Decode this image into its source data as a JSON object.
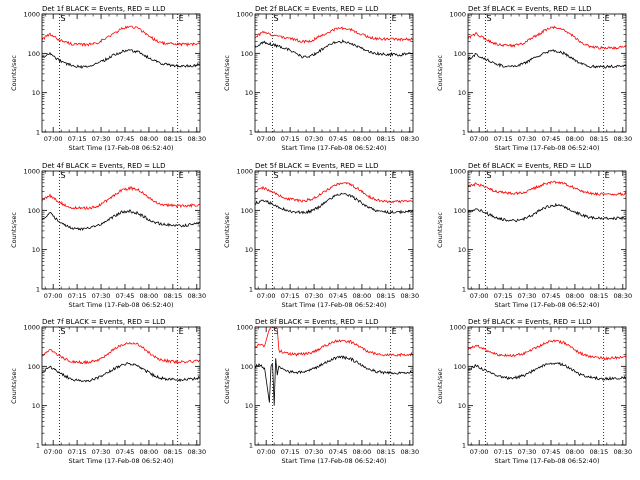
{
  "colors": {
    "events": "#000000",
    "lld": "#ff0000",
    "axes": "#000000",
    "background": "#ffffff"
  },
  "shared": {
    "xlabel": "Start Time (17-Feb-08 06:52:40)",
    "ylabel": "Counts/sec",
    "x_tick_labels": [
      "07:00",
      "07:15",
      "07:30",
      "07:45",
      "08:00",
      "08:15",
      "08:30"
    ],
    "x_tick_minutes": [
      7,
      22,
      37,
      52,
      67,
      82,
      97
    ],
    "x_range_minutes": [
      0,
      99
    ],
    "y_tick_labels": [
      "1",
      "10",
      "100",
      "1000"
    ],
    "y_tick_values": [
      1,
      10,
      100,
      1000
    ],
    "y_range": [
      1,
      1000
    ],
    "y_scale": "log",
    "markers": [
      {
        "label": "S",
        "x_minute": 11
      },
      {
        "label": "E",
        "x_minute": 85
      }
    ]
  },
  "chart_data": [
    {
      "type": "line",
      "title": "Det 1f BLACK = Events, RED = LLD",
      "x": [
        0,
        5,
        10,
        15,
        20,
        25,
        30,
        35,
        40,
        45,
        50,
        55,
        60,
        65,
        70,
        75,
        80,
        85,
        90,
        95,
        99
      ],
      "series": [
        {
          "values": [
            230,
            300,
            230,
            190,
            170,
            165,
            170,
            190,
            240,
            320,
            420,
            480,
            440,
            320,
            230,
            185,
            175,
            170,
            168,
            170,
            175
          ]
        },
        {
          "values": [
            80,
            100,
            70,
            55,
            48,
            45,
            48,
            55,
            70,
            90,
            110,
            120,
            110,
            85,
            65,
            55,
            50,
            48,
            47,
            48,
            52
          ]
        }
      ]
    },
    {
      "type": "line",
      "title": "Det 2f BLACK = Events, RED = LLD",
      "x": [
        0,
        5,
        10,
        15,
        20,
        25,
        30,
        35,
        40,
        45,
        50,
        55,
        60,
        65,
        70,
        75,
        80,
        85,
        90,
        95,
        99
      ],
      "series": [
        {
          "values": [
            260,
            340,
            300,
            270,
            250,
            220,
            200,
            210,
            260,
            330,
            410,
            440,
            400,
            330,
            270,
            240,
            230,
            230,
            225,
            230,
            235
          ]
        },
        {
          "values": [
            150,
            190,
            170,
            150,
            130,
            100,
            80,
            85,
            110,
            150,
            190,
            200,
            180,
            145,
            115,
            100,
            95,
            95,
            92,
            95,
            100
          ]
        }
      ]
    },
    {
      "type": "line",
      "title": "Det 3f BLACK = Events, RED = LLD",
      "x": [
        0,
        5,
        10,
        15,
        20,
        25,
        30,
        35,
        40,
        45,
        50,
        55,
        60,
        65,
        70,
        75,
        80,
        85,
        90,
        95,
        99
      ],
      "series": [
        {
          "values": [
            240,
            320,
            240,
            190,
            165,
            155,
            160,
            185,
            240,
            320,
            420,
            460,
            400,
            290,
            200,
            155,
            140,
            135,
            138,
            140,
            145
          ]
        },
        {
          "values": [
            70,
            95,
            75,
            60,
            50,
            45,
            48,
            55,
            70,
            90,
            110,
            115,
            100,
            75,
            55,
            48,
            45,
            45,
            46,
            48,
            52
          ]
        }
      ]
    },
    {
      "type": "line",
      "title": "Det 4f BLACK = Events, RED = LLD",
      "x": [
        0,
        5,
        10,
        15,
        20,
        25,
        30,
        35,
        40,
        45,
        50,
        55,
        60,
        65,
        70,
        75,
        80,
        85,
        90,
        95,
        99
      ],
      "series": [
        {
          "values": [
            180,
            240,
            170,
            130,
            115,
            112,
            115,
            130,
            170,
            240,
            330,
            370,
            340,
            250,
            170,
            140,
            135,
            130,
            132,
            135,
            140
          ]
        },
        {
          "values": [
            60,
            85,
            55,
            40,
            35,
            34,
            36,
            40,
            52,
            70,
            90,
            95,
            85,
            65,
            50,
            45,
            42,
            40,
            42,
            44,
            48
          ]
        }
      ]
    },
    {
      "type": "line",
      "title": "Det 5f BLACK = Events, RED = LLD",
      "x": [
        0,
        5,
        10,
        15,
        20,
        25,
        30,
        35,
        40,
        45,
        50,
        55,
        60,
        65,
        70,
        75,
        80,
        85,
        90,
        95,
        99
      ],
      "series": [
        {
          "values": [
            300,
            380,
            300,
            240,
            200,
            180,
            175,
            190,
            240,
            330,
            440,
            490,
            450,
            340,
            240,
            190,
            170,
            165,
            165,
            170,
            175
          ]
        },
        {
          "values": [
            150,
            180,
            150,
            120,
            100,
            90,
            88,
            95,
            120,
            170,
            230,
            260,
            235,
            175,
            125,
            100,
            92,
            90,
            90,
            93,
            98
          ]
        }
      ]
    },
    {
      "type": "line",
      "title": "Det 6f BLACK = Events, RED = LLD",
      "x": [
        0,
        5,
        10,
        15,
        20,
        25,
        30,
        35,
        40,
        45,
        50,
        55,
        60,
        65,
        70,
        75,
        80,
        85,
        90,
        95,
        99
      ],
      "series": [
        {
          "values": [
            400,
            470,
            400,
            330,
            290,
            270,
            270,
            290,
            340,
            420,
            500,
            530,
            490,
            400,
            320,
            280,
            260,
            255,
            255,
            258,
            262
          ]
        },
        {
          "values": [
            90,
            110,
            90,
            72,
            60,
            55,
            55,
            60,
            75,
            100,
            125,
            135,
            125,
            100,
            80,
            68,
            64,
            62,
            62,
            63,
            65
          ]
        }
      ]
    },
    {
      "type": "line",
      "title": "Det 7f BLACK = Events, RED = LLD",
      "x": [
        0,
        5,
        10,
        15,
        20,
        25,
        30,
        35,
        40,
        45,
        50,
        55,
        60,
        65,
        70,
        75,
        80,
        85,
        90,
        95,
        99
      ],
      "series": [
        {
          "values": [
            180,
            260,
            190,
            150,
            130,
            125,
            128,
            145,
            190,
            270,
            360,
            400,
            360,
            260,
            180,
            145,
            135,
            130,
            132,
            135,
            140
          ]
        },
        {
          "values": [
            70,
            100,
            70,
            55,
            45,
            42,
            44,
            50,
            65,
            85,
            110,
            118,
            105,
            78,
            58,
            50,
            47,
            45,
            46,
            48,
            52
          ]
        }
      ]
    },
    {
      "type": "line",
      "title": "Det 8f BLACK = Events, RED = LLD",
      "x": [
        0,
        3,
        6,
        9,
        10,
        11,
        12,
        13,
        14,
        15,
        20,
        25,
        30,
        35,
        40,
        45,
        50,
        55,
        60,
        65,
        70,
        75,
        80,
        85,
        90,
        95,
        99
      ],
      "series": [
        {
          "values": [
            320,
            360,
            330,
            900,
            1000,
            1000,
            1000,
            1000,
            900,
            250,
            210,
            200,
            205,
            220,
            270,
            350,
            430,
            460,
            420,
            330,
            250,
            210,
            200,
            195,
            197,
            200,
            205
          ]
        },
        {
          "values": [
            100,
            110,
            90,
            12,
            100,
            110,
            10,
            150,
            60,
            95,
            75,
            70,
            72,
            80,
            100,
            130,
            160,
            170,
            155,
            120,
            90,
            75,
            70,
            68,
            68,
            70,
            73
          ]
        }
      ]
    },
    {
      "type": "line",
      "title": "Det 9f BLACK = Events, RED = LLD",
      "x": [
        0,
        5,
        10,
        15,
        20,
        25,
        30,
        35,
        40,
        45,
        50,
        55,
        60,
        65,
        70,
        75,
        80,
        85,
        90,
        95,
        99
      ],
      "series": [
        {
          "values": [
            260,
            340,
            270,
            220,
            195,
            185,
            190,
            210,
            260,
            330,
            410,
            450,
            400,
            300,
            220,
            180,
            165,
            160,
            162,
            165,
            170
          ]
        },
        {
          "values": [
            80,
            105,
            80,
            65,
            55,
            50,
            52,
            58,
            75,
            95,
            115,
            120,
            108,
            82,
            62,
            54,
            50,
            48,
            49,
            50,
            54
          ]
        }
      ]
    }
  ]
}
